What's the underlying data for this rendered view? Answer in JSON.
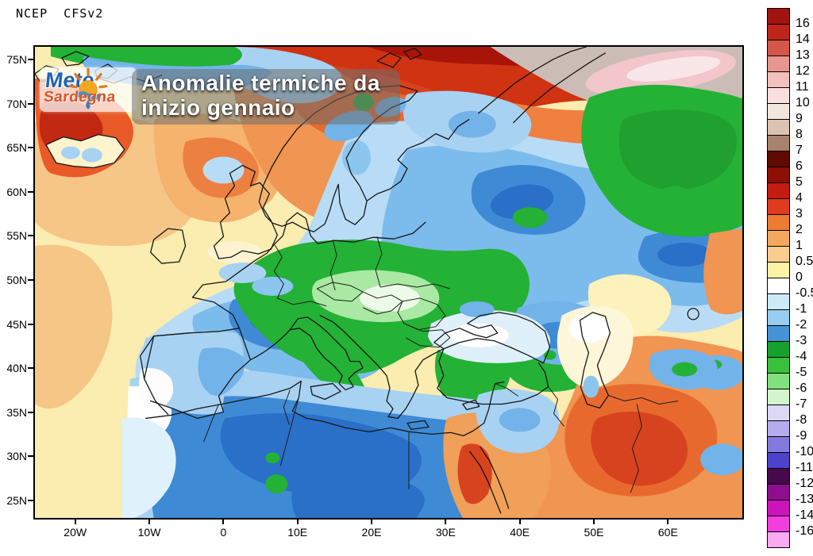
{
  "header": {
    "model_label": "NCEP  CFSv2"
  },
  "overlay": {
    "logo": {
      "line1": "Mete",
      "line2": "Sardegna",
      "icon": "sun-icon"
    },
    "title_line1": "Anomalie termiche da",
    "title_line2": "inizio gennaio"
  },
  "map": {
    "type": "filled-contour temperature anomaly map, Europe / North Africa / Middle East",
    "lat_labels": [
      "75N",
      "70N",
      "65N",
      "60N",
      "55N",
      "50N",
      "45N",
      "40N",
      "35N",
      "30N",
      "25N"
    ],
    "lon_labels": [
      "20W",
      "10W",
      "0",
      "10E",
      "20E",
      "30E",
      "40E",
      "50E",
      "60E"
    ]
  },
  "colorbar": {
    "labels": [
      "16",
      "14",
      "13",
      "12",
      "11",
      "10",
      "9",
      "8",
      "7",
      "6",
      "5",
      "4",
      "3",
      "2",
      "1",
      "0.5",
      "0",
      "-0.5",
      "-1",
      "-2",
      "-3",
      "-4",
      "-5",
      "-6",
      "-7",
      "-8",
      "-9",
      "-10",
      "-11",
      "-12",
      "-13",
      "-14",
      "-16"
    ],
    "colors": [
      "#a21410",
      "#c0231a",
      "#d5564a",
      "#e6968e",
      "#f2c1bd",
      "#fadfdd",
      "#f3e6dd",
      "#dcc2b1",
      "#a8826c",
      "#5e0a00",
      "#8e0f04",
      "#c41c10",
      "#df3b1c",
      "#ee7b32",
      "#f4a85e",
      "#f8cd8e",
      "#fdf2a6",
      "#ffffff",
      "#cdeaf8",
      "#96cdf0",
      "#4493d6",
      "#16a12d",
      "#38c13c",
      "#82e07e",
      "#d2f5cc",
      "#dcd8f6",
      "#b4acee",
      "#837ae0",
      "#4d42cc",
      "#47094e",
      "#8f0d8f",
      "#cd13bb",
      "#f23ddf",
      "#f9aaf0"
    ]
  },
  "field_colors": {
    "base_pale_yellow": "#fbecb0",
    "orange": "#f09552",
    "deep_orange": "#e8692e",
    "red": "#cf3312",
    "dark_red": "#a81408",
    "gray_tan": "#cbbdb6",
    "pink": "#f2c6cb",
    "pale_blue": "#b9dcf6",
    "blue": "#72b3e9",
    "deep_blue": "#3f8ad4",
    "deepest_blue": "#2a6fc8",
    "green": "#23b136",
    "pale_green": "#a9e9a3",
    "white": "#ffffff"
  }
}
